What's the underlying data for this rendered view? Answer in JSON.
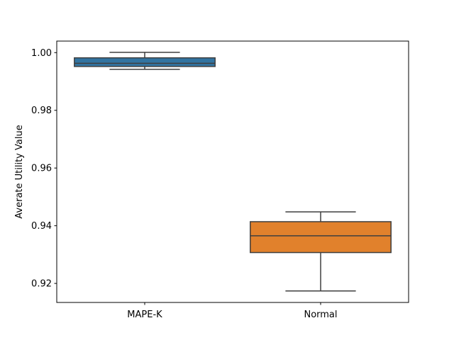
{
  "chart_data": {
    "type": "box",
    "title": "",
    "xlabel": "",
    "ylabel": "Averate Utility Value",
    "ylim": [
      0.9134,
      1.004
    ],
    "yticks": [
      0.92,
      0.94,
      0.96,
      0.98,
      1.0
    ],
    "ytick_labels": [
      "0.92",
      "0.94",
      "0.96",
      "0.98",
      "1.00"
    ],
    "grid": false,
    "legend": "none",
    "categories": [
      "MAPE-K",
      "Normal"
    ],
    "series": [
      {
        "category": "MAPE-K",
        "color": "#3274a1",
        "whisker_low": 0.9942,
        "q1": 0.9952,
        "median": 0.9963,
        "q3": 0.9982,
        "whisker_high": 1.0001
      },
      {
        "category": "Normal",
        "color": "#e1812c",
        "whisker_low": 0.9174,
        "q1": 0.9307,
        "median": 0.9365,
        "q3": 0.9414,
        "whisker_high": 0.9448
      }
    ]
  }
}
